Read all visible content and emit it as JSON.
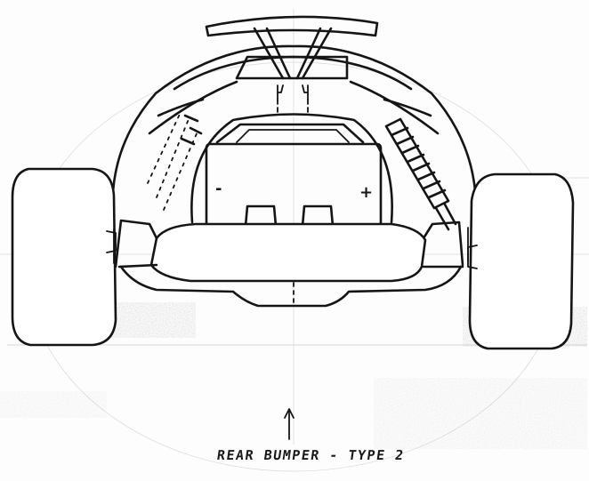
{
  "caption": "REAR BUMPER - TYPE 2",
  "battery": {
    "negative_label": "-",
    "positive_label": "+"
  },
  "callout_arrow_icon": "up-arrow-icon",
  "ink_color": "#151515",
  "paper_color": "#fdfdfd"
}
